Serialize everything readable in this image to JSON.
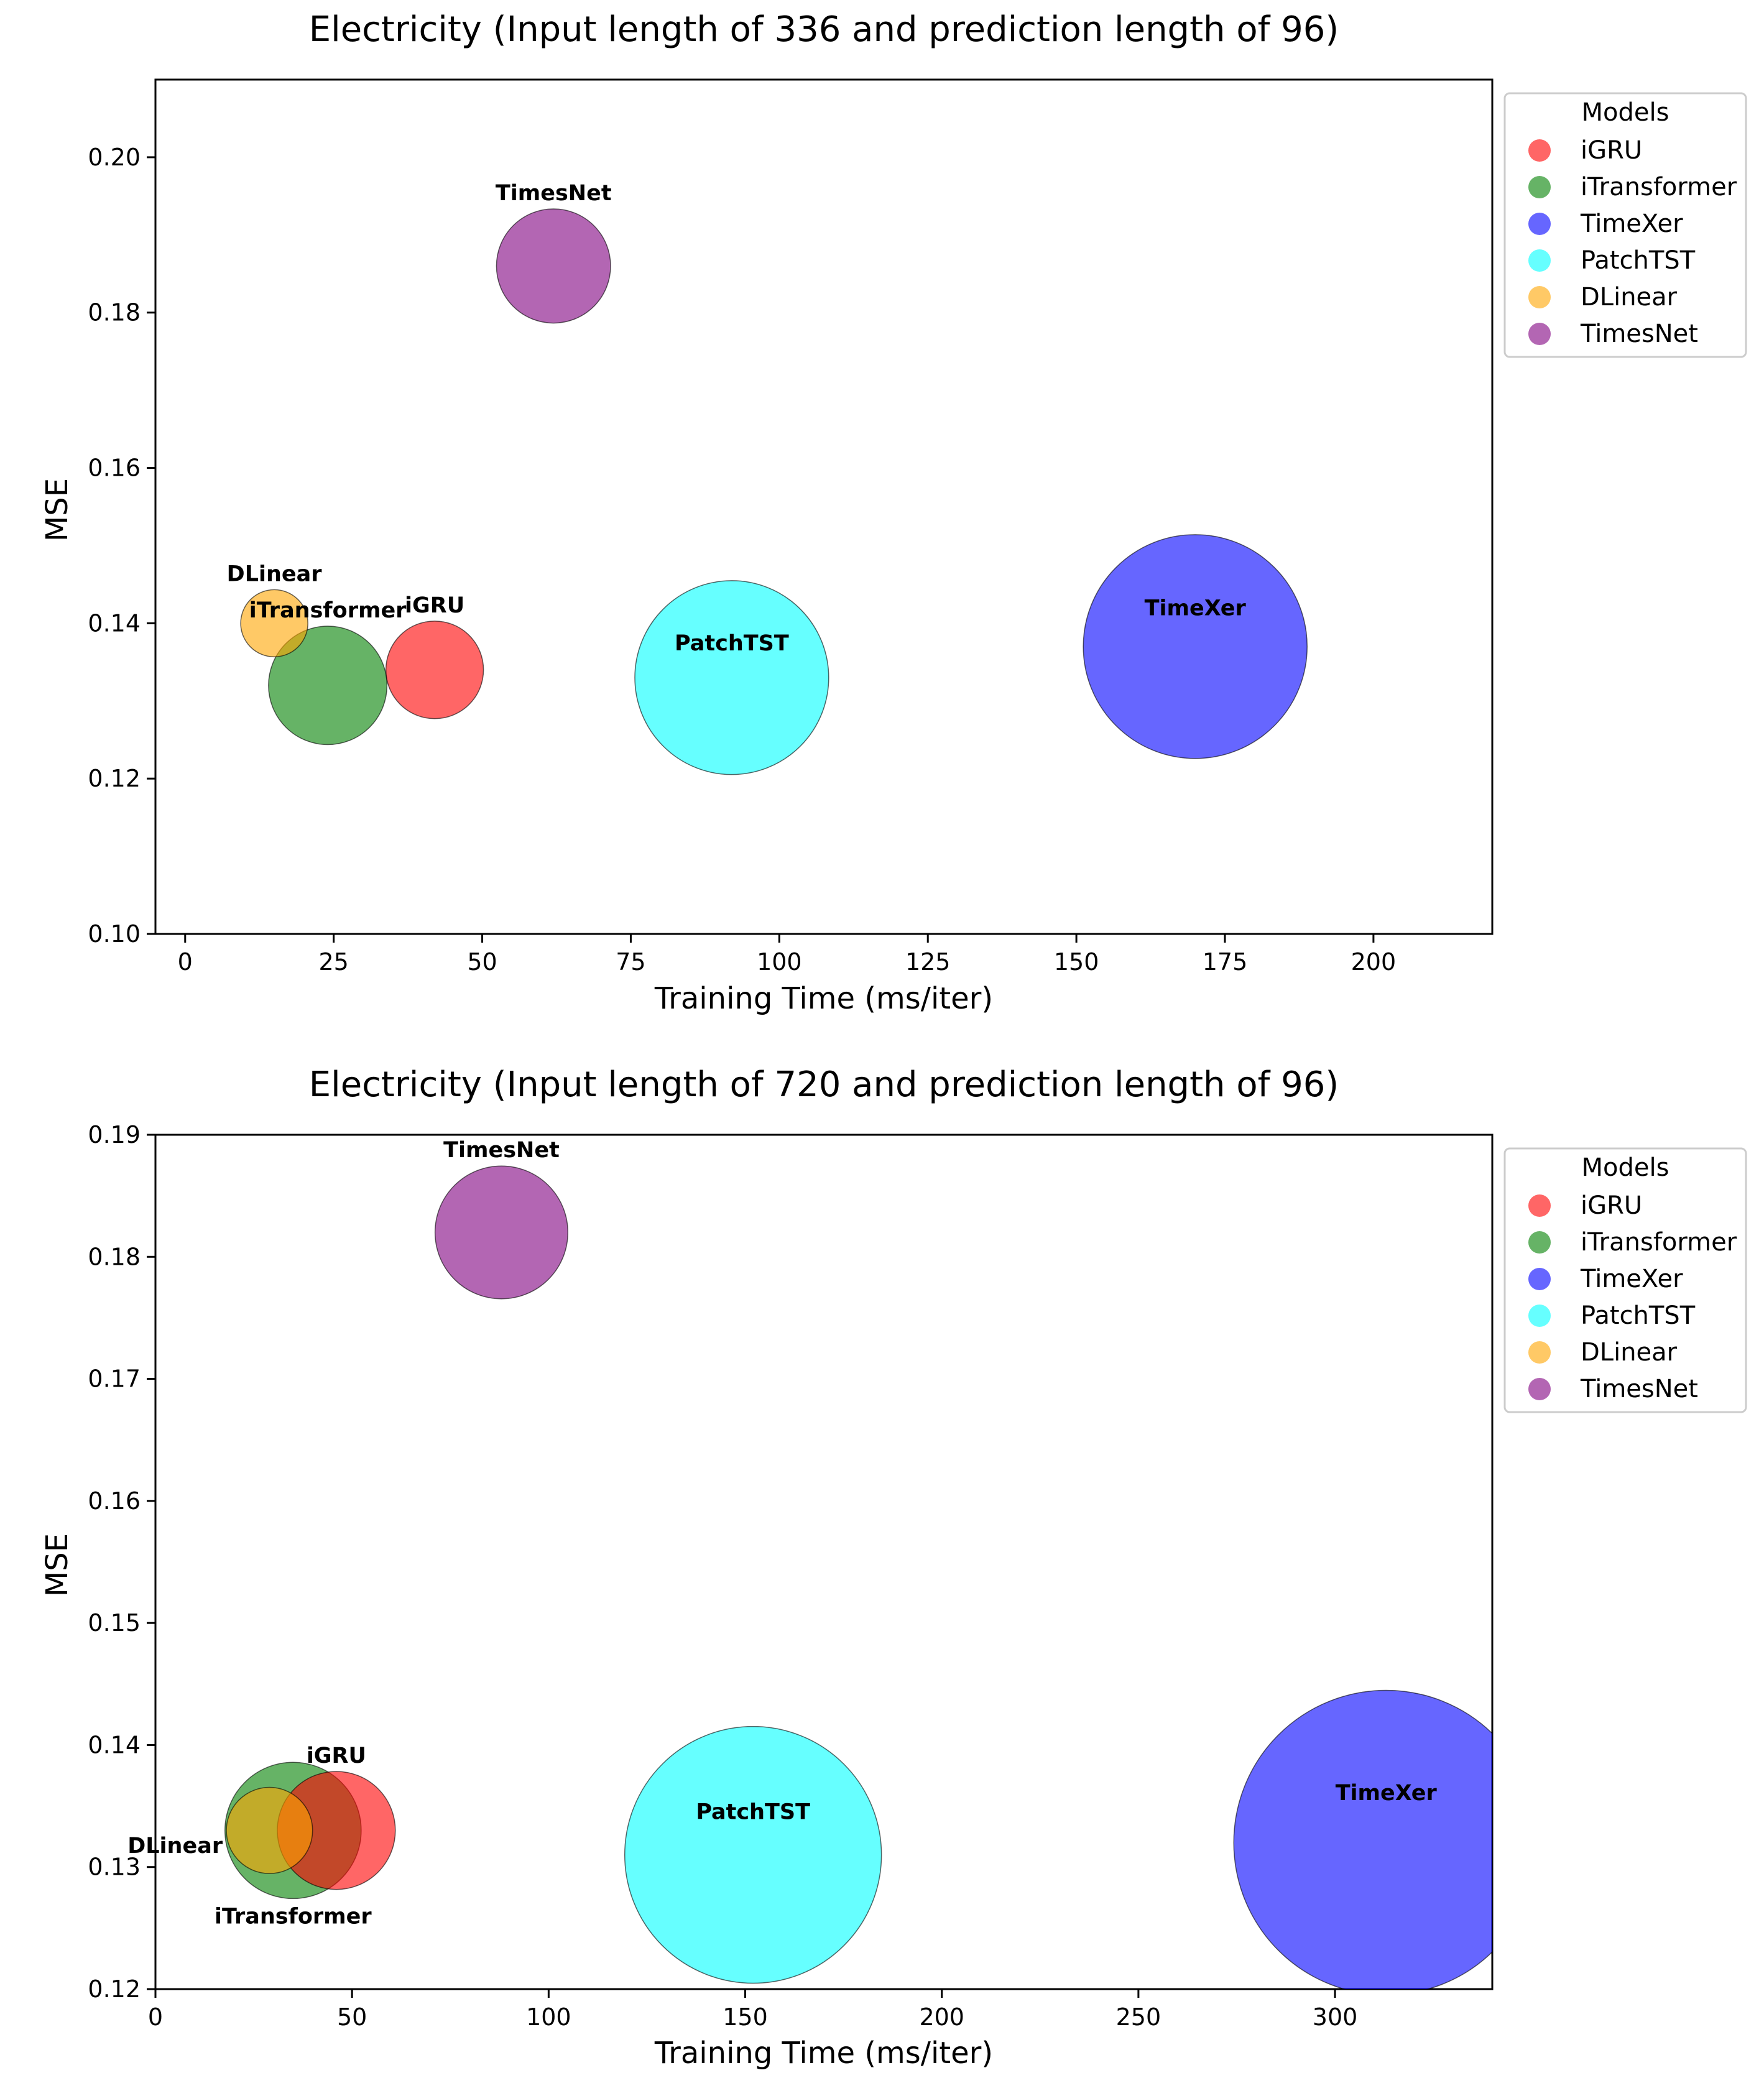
{
  "legend_title": "Models",
  "colors": {
    "iGRU": "#ff0000",
    "iTransformer": "#008000",
    "TimeXer": "#0000ff",
    "PatchTST": "#00ffff",
    "DLinear": "#ffa500",
    "TimesNet": "#800080"
  },
  "chart_data": [
    {
      "type": "scatter",
      "title": "Electricity (Input length of 336 and prediction length of 96)",
      "xlabel": "Training Time (ms/iter)",
      "ylabel": "MSE",
      "xlim": [
        -5,
        220
      ],
      "ylim": [
        0.1,
        0.21
      ],
      "xticks": [
        0,
        25,
        50,
        75,
        100,
        125,
        150,
        175,
        200
      ],
      "yticks": [
        0.1,
        0.12,
        0.14,
        0.16,
        0.18,
        0.2
      ],
      "grid": false,
      "legend_position": "outside-top-right",
      "legend": [
        "iGRU",
        "iTransformer",
        "TimeXer",
        "PatchTST",
        "DLinear",
        "TimesNet"
      ],
      "points": [
        {
          "name": "iGRU",
          "x": 42,
          "y": 0.134,
          "bubble_size": 0.19
        },
        {
          "name": "iTransformer",
          "x": 24,
          "y": 0.132,
          "bubble_size": 0.28
        },
        {
          "name": "TimeXer",
          "x": 170,
          "y": 0.137,
          "bubble_size": 1.0
        },
        {
          "name": "PatchTST",
          "x": 92,
          "y": 0.133,
          "bubble_size": 0.75
        },
        {
          "name": "DLinear",
          "x": 15,
          "y": 0.14,
          "bubble_size": 0.09
        },
        {
          "name": "TimesNet",
          "x": 62,
          "y": 0.186,
          "bubble_size": 0.26
        }
      ]
    },
    {
      "type": "scatter",
      "title": "Electricity (Input length of 720 and prediction length of 96)",
      "xlabel": "Training Time (ms/iter)",
      "ylabel": "MSE",
      "xlim": [
        0,
        340
      ],
      "ylim": [
        0.12,
        0.19
      ],
      "xticks": [
        0,
        50,
        100,
        150,
        200,
        250,
        300
      ],
      "yticks": [
        0.12,
        0.13,
        0.14,
        0.15,
        0.16,
        0.17,
        0.18,
        0.19
      ],
      "grid": false,
      "legend_position": "outside-top-right",
      "legend": [
        "iGRU",
        "iTransformer",
        "TimeXer",
        "PatchTST",
        "DLinear",
        "TimesNet"
      ],
      "points": [
        {
          "name": "iGRU",
          "x": 46,
          "y": 0.133,
          "bubble_size": 0.15
        },
        {
          "name": "iTransformer",
          "x": 35,
          "y": 0.133,
          "bubble_size": 0.2
        },
        {
          "name": "TimeXer",
          "x": 313,
          "y": 0.132,
          "bubble_size": 1.0
        },
        {
          "name": "PatchTST",
          "x": 152,
          "y": 0.131,
          "bubble_size": 0.71
        },
        {
          "name": "DLinear",
          "x": 29,
          "y": 0.133,
          "bubble_size": 0.08
        },
        {
          "name": "TimesNet",
          "x": 88,
          "y": 0.182,
          "bubble_size": 0.19
        }
      ]
    }
  ]
}
